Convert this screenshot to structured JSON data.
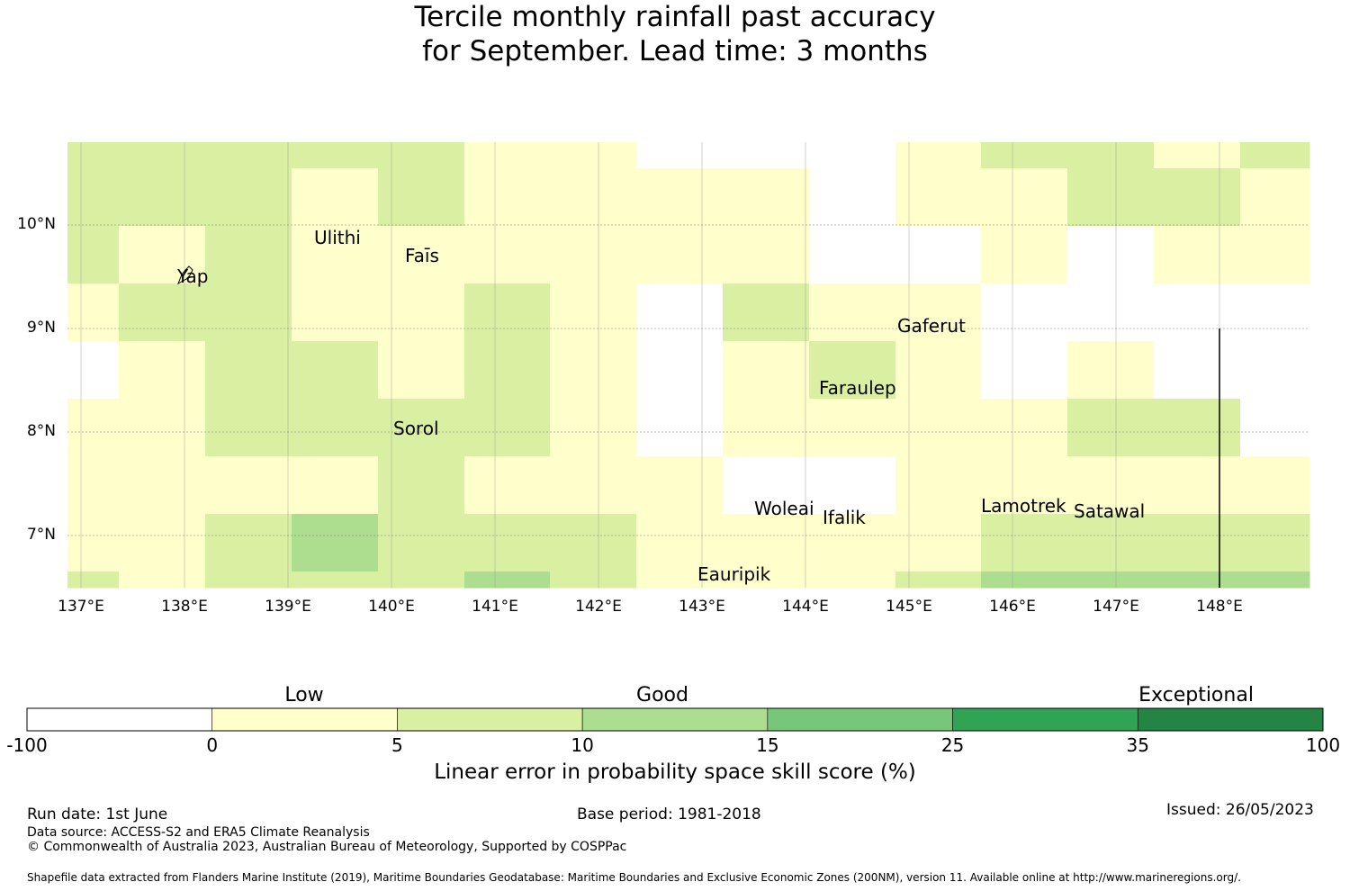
{
  "title": {
    "line1": "Tercile monthly rainfall past accuracy",
    "line2": "for September. Lead time: 3 months"
  },
  "map": {
    "x_ticks": [
      "137°E",
      "138°E",
      "139°E",
      "140°E",
      "141°E",
      "142°E",
      "143°E",
      "144°E",
      "145°E",
      "146°E",
      "147°E",
      "148°E"
    ],
    "y_ticks": [
      "10°N",
      "9°N",
      "8°N",
      "7°N"
    ],
    "x_tick_values": [
      137,
      138,
      139,
      140,
      141,
      142,
      143,
      144,
      145,
      146,
      147,
      148
    ],
    "y_tick_values": [
      10,
      9,
      8,
      7
    ],
    "lon_range": [
      137,
      149
    ],
    "lat_range": [
      6.5,
      10.8
    ],
    "colors": {
      "-1": "#ffffff",
      "0": "#ffffcc",
      "1": "#d9f0a3",
      "2": "#addd8e",
      "3": "#78c679",
      "4": "#31a354",
      "5": "#238443"
    },
    "grid_cells_legend": "0=white(-100..0), 1=0..5, 2=5..10, 3=10..15",
    "places": [
      {
        "name": "Ulithi",
        "lon": 139.6,
        "lat": 9.85
      },
      {
        "name": "Fais",
        "display": "Faīs",
        "lon": 140.45,
        "lat": 9.65
      },
      {
        "name": "Yap",
        "lon": 138.2,
        "lat": 9.45
      },
      {
        "name": "Gaferut",
        "lon": 145.35,
        "lat": 9.0
      },
      {
        "name": "Faraulep",
        "lon": 144.65,
        "lat": 8.4
      },
      {
        "name": "Sorol",
        "lon": 140.4,
        "lat": 8.0
      },
      {
        "name": "Woleai",
        "lon": 143.85,
        "lat": 7.25
      },
      {
        "name": "Ifalik",
        "lon": 144.5,
        "lat": 7.15
      },
      {
        "name": "Lamotrek",
        "lon": 146.25,
        "lat": 7.28
      },
      {
        "name": "Satawal",
        "lon": 147.1,
        "lat": 7.2
      },
      {
        "name": "Eauripik",
        "lon": 143.45,
        "lat": 6.62
      }
    ],
    "place_labels": [
      "Ulithi",
      "Faīs",
      "Yap",
      "Gaferut",
      "Faraulep",
      "Sorol",
      "Woleai",
      "Ifalik",
      "Lamotrek",
      "Satawal",
      "Eauripik"
    ]
  },
  "colorbar": {
    "category_labels": [
      "Low",
      "Good",
      "Exceptional"
    ],
    "ticks": [
      "-100",
      "0",
      "5",
      "10",
      "15",
      "25",
      "35",
      "100"
    ],
    "colors": [
      "#ffffff",
      "#ffffcc",
      "#d9f0a3",
      "#addd8e",
      "#78c679",
      "#31a354",
      "#238443"
    ],
    "xlabel": "Linear error in probability space skill score (%)"
  },
  "footer": {
    "run_date": "Run date: 1st June",
    "base_period": "Base period: 1981-2018",
    "issued": "Issued: 26/05/2023",
    "data_source": "Data source: ACCESS-S2 and ERA5 Climate Reanalysis",
    "copyright": "© Commonwealth of Australia 2023, Australian Bureau of Meteorology, Supported by COSPPac",
    "shapefile": "Shapefile data extracted from Flanders Marine Institute (2019), Maritime Boundaries Geodatabase: Maritime Boundaries and Exclusive Economic Zones (200NM), version 11. Available online at http://www.marineregions.org/."
  }
}
